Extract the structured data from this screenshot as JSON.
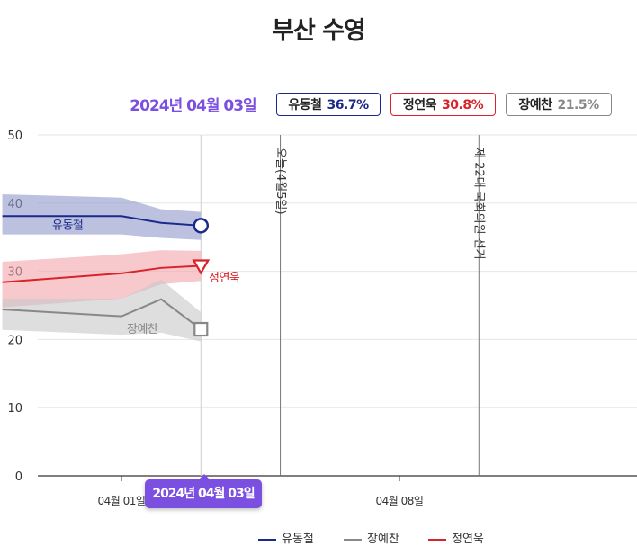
{
  "title": "부산 수영",
  "header": {
    "date": "2024년 04월 03일",
    "badges": [
      {
        "name": "유동철",
        "value": "36.7%",
        "color": "#1a2a8a"
      },
      {
        "name": "정연욱",
        "value": "30.8%",
        "color": "#d9222a"
      },
      {
        "name": "장예찬",
        "value": "21.5%",
        "color": "#888888"
      }
    ]
  },
  "tooltip": "2024년 04월 03일",
  "chart_data": {
    "type": "line",
    "x_ticks": [
      "04월 01일",
      "04월 08일"
    ],
    "ylim": [
      0,
      50
    ],
    "y_ticks": [
      "0",
      "10",
      "20",
      "30",
      "40",
      "50"
    ],
    "grid": true,
    "legend_position": "bottom",
    "annotations": [
      {
        "label": "오늘(4월5일)",
        "x": "2024-04-05"
      },
      {
        "label": "제 22대 국회의원 선거",
        "x": "2024-04-10"
      }
    ],
    "series": [
      {
        "name": "유동철",
        "color": "#1a2a8a",
        "band_color": "#8f97cc",
        "x": [
          "2024-03-29",
          "2024-04-01",
          "2024-04-02",
          "2024-04-03"
        ],
        "values": [
          38.1,
          38.1,
          37.1,
          36.7
        ],
        "upper": [
          41.3,
          40.8,
          39.1,
          38.7
        ],
        "lower": [
          35.4,
          35.4,
          34.9,
          34.6
        ],
        "marker": "circle"
      },
      {
        "name": "정연욱",
        "color": "#d9222a",
        "band_color": "#f4a5aa",
        "x": [
          "2024-03-29",
          "2024-04-01",
          "2024-04-02",
          "2024-04-03"
        ],
        "values": [
          28.4,
          29.7,
          30.5,
          30.8
        ],
        "upper": [
          31.4,
          32.5,
          33.1,
          33.0
        ],
        "lower": [
          24.7,
          26.0,
          28.1,
          28.6
        ],
        "marker": "triangle-down"
      },
      {
        "name": "장예찬",
        "color": "#888888",
        "band_color": "#c8c8c8",
        "x": [
          "2024-03-29",
          "2024-04-01",
          "2024-04-02",
          "2024-04-03"
        ],
        "values": [
          24.4,
          23.4,
          25.9,
          21.5
        ],
        "upper": [
          26.0,
          26.0,
          28.8,
          24.0
        ],
        "lower": [
          21.4,
          20.7,
          21.0,
          19.7
        ],
        "marker": "square"
      }
    ]
  }
}
